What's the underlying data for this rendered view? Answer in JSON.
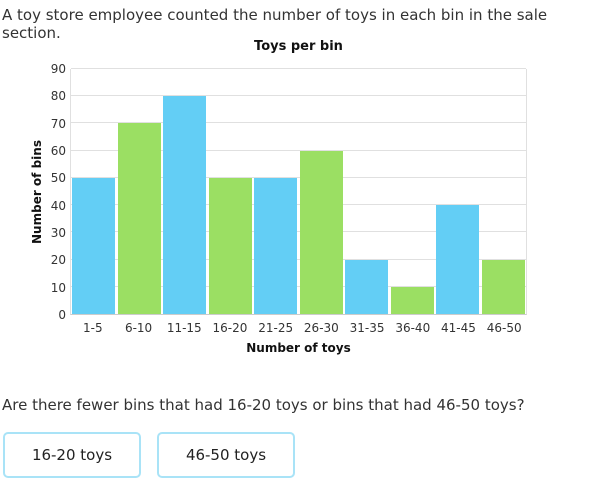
{
  "intro": "A toy store employee counted the number of toys in each bin in the sale section.",
  "chart_data": {
    "type": "bar",
    "title": "Toys per bin",
    "categories": [
      "1-5",
      "6-10",
      "11-15",
      "16-20",
      "21-25",
      "26-30",
      "31-35",
      "36-40",
      "41-45",
      "46-50"
    ],
    "values": [
      50,
      70,
      80,
      50,
      50,
      60,
      20,
      10,
      40,
      20
    ],
    "bar_colors": [
      "#63cef5",
      "#9bdf63",
      "#63cef5",
      "#9bdf63",
      "#63cef5",
      "#9bdf63",
      "#63cef5",
      "#9bdf63",
      "#63cef5",
      "#9bdf63"
    ],
    "xlabel": "Number of toys",
    "ylabel": "Number of bins",
    "ylim": [
      0,
      90
    ],
    "ytick_step": 10,
    "yticks": [
      0,
      10,
      20,
      30,
      40,
      50,
      60,
      70,
      80,
      90
    ],
    "grid": "horizontal",
    "legend": "none"
  },
  "question": "Are there fewer bins that had 16-20 toys or bins that had 46-50 toys?",
  "answers": [
    {
      "label": "16-20 toys"
    },
    {
      "label": "46-50 toys"
    }
  ],
  "colors": {
    "bar_blue": "#63cef5",
    "bar_green": "#9bdf63",
    "gridline": "#e0e0e0",
    "button_border": "#a9e3f7",
    "text": "#333333"
  }
}
